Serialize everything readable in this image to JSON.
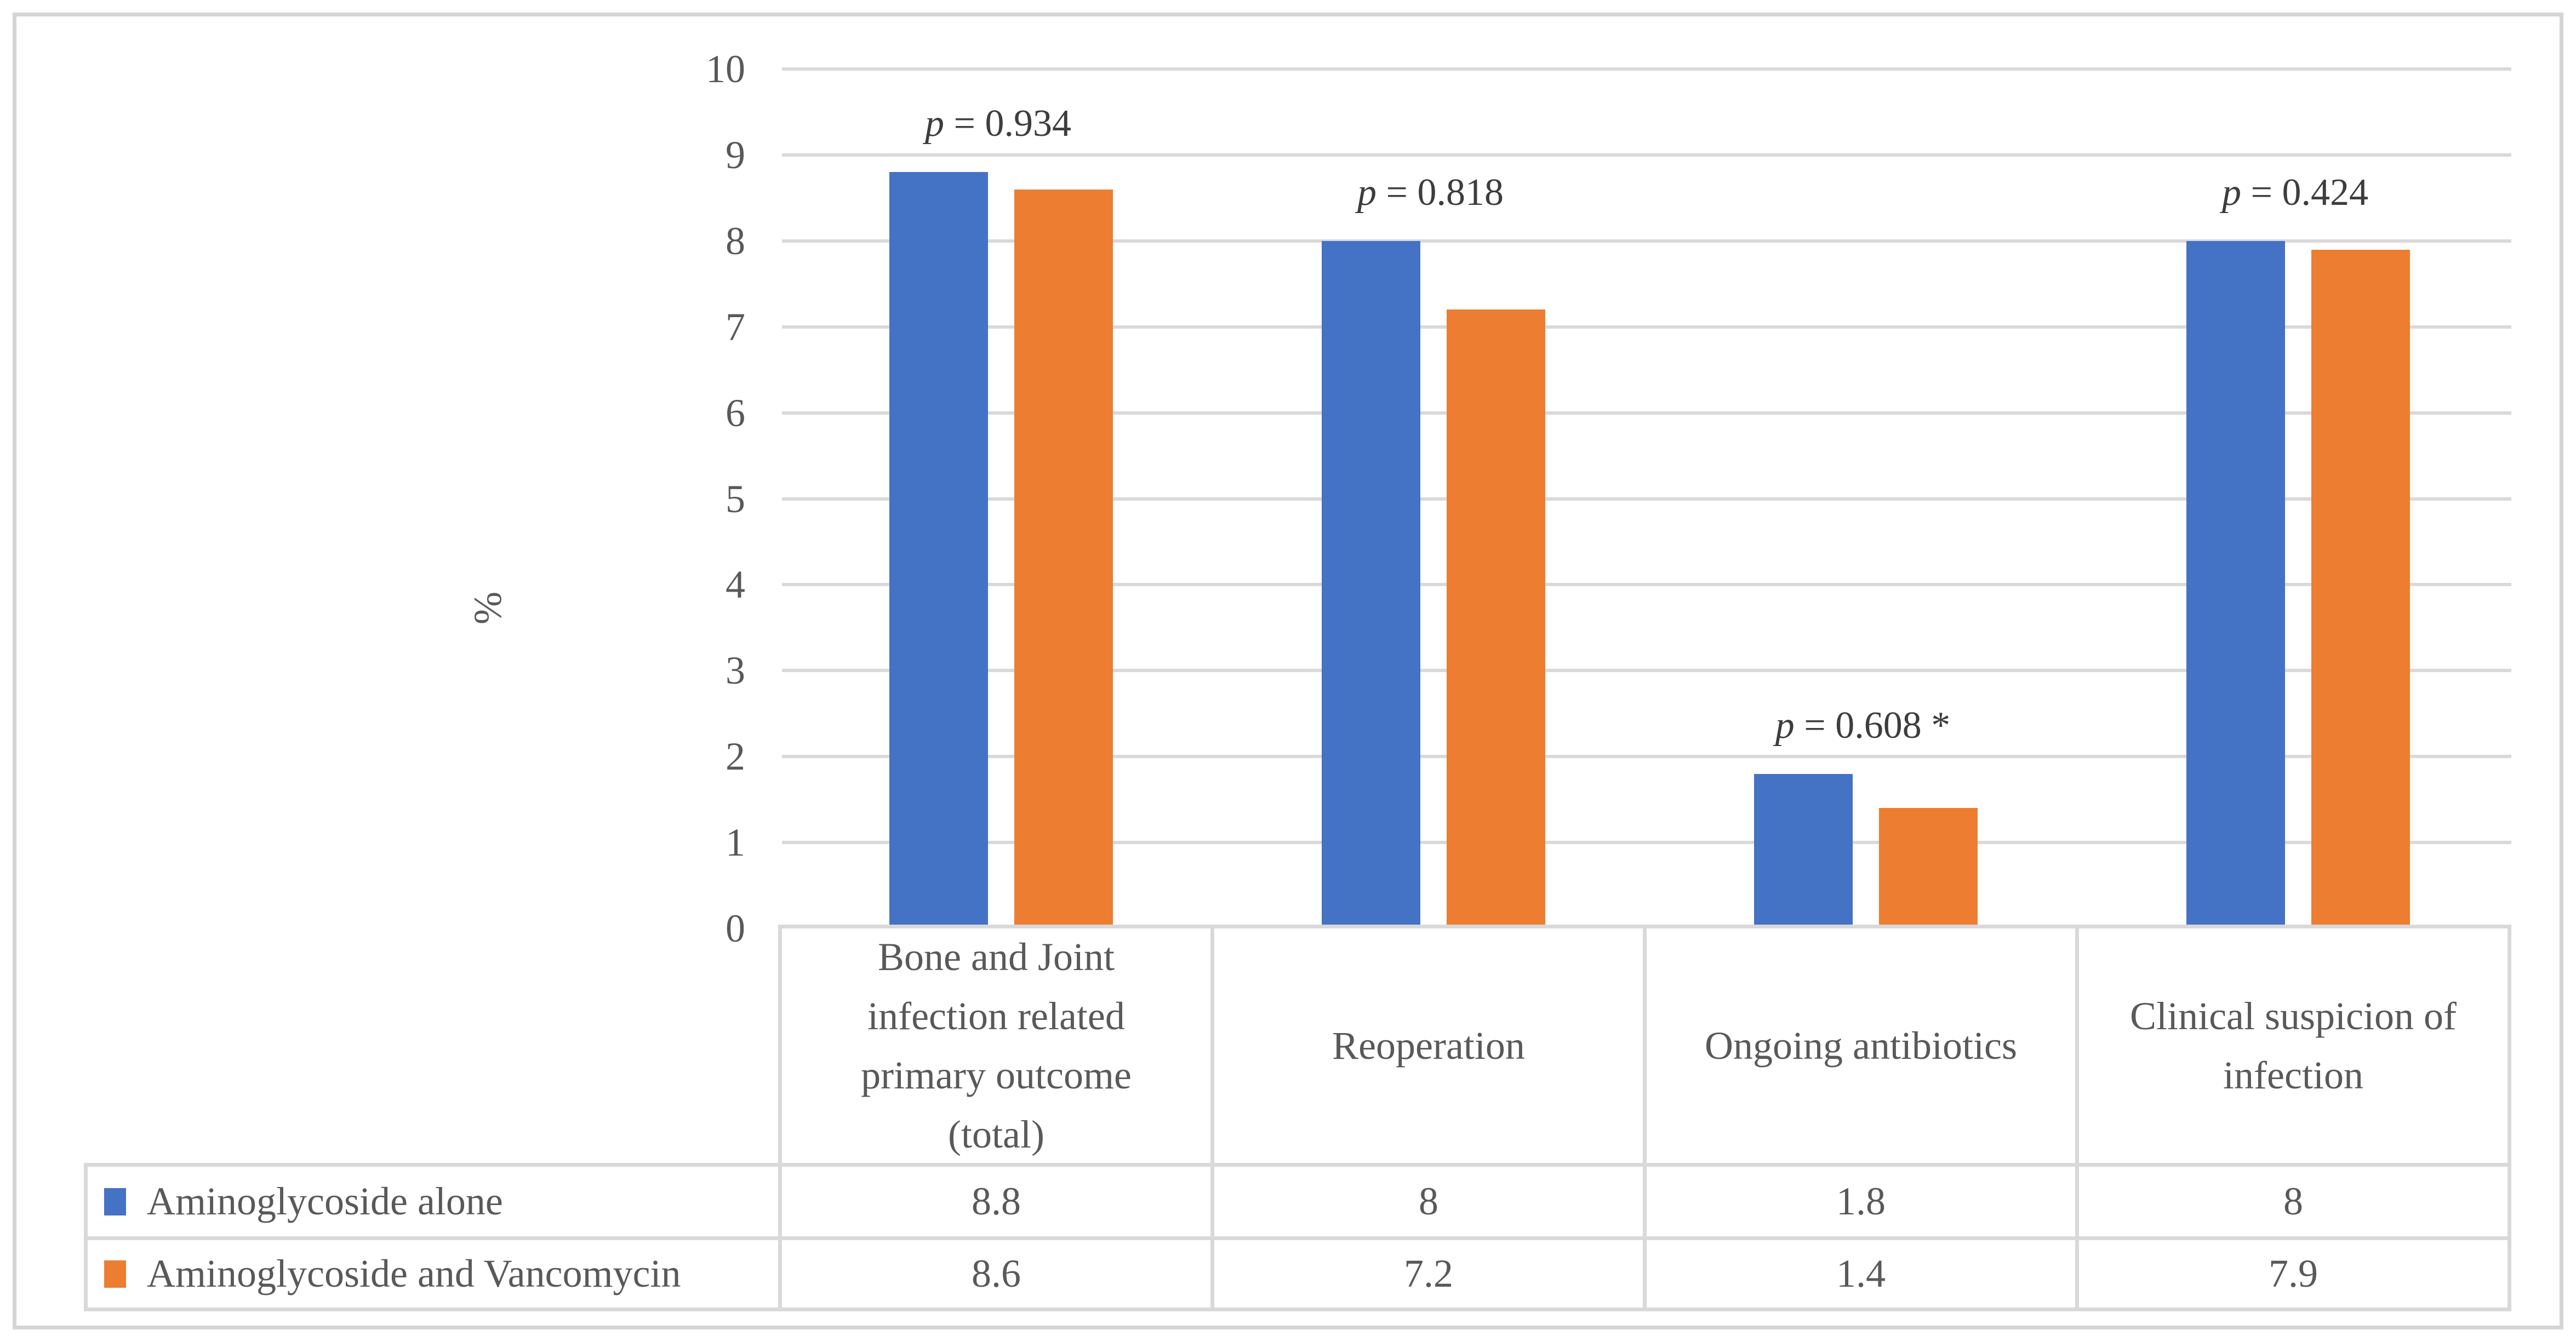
{
  "figure": {
    "y_axis_title": "%"
  },
  "chart_data": {
    "type": "bar",
    "title": "",
    "xlabel": "",
    "ylabel": "%",
    "ylim": [
      0,
      10
    ],
    "ytick_labels": [
      "0",
      "1",
      "2",
      "3",
      "4",
      "5",
      "6",
      "7",
      "8",
      "9",
      "10"
    ],
    "grid": true,
    "legend_position": "bottom-left-table",
    "categories": [
      "Bone and Joint\ninfection related\nprimary outcome\n(total)",
      "Reoperation",
      "Ongoing antibiotics",
      "Clinical suspicion of\ninfection"
    ],
    "series": [
      {
        "name": "Aminoglycoside alone",
        "color": "#4472C4",
        "values": [
          8.8,
          8,
          1.8,
          8
        ],
        "display_values": [
          "8.8",
          "8",
          "1.8",
          "8"
        ]
      },
      {
        "name": "Aminoglycoside and Vancomycin",
        "color": "#ED7D31",
        "values": [
          8.6,
          7.2,
          1.4,
          7.9
        ],
        "display_values": [
          "8.6",
          "7.2",
          "1.4",
          "7.9"
        ]
      }
    ],
    "p_value_labels": [
      "p = 0.934",
      "p = 0.818",
      "p = 0.608 *",
      "p = 0.424"
    ],
    "colors": {
      "gridline": "#D9D9D9",
      "table_border": "#D9D9D9",
      "figure_border": "#D4D4D4",
      "axis_text": "#595959",
      "p_label_text": "#3D3D3D"
    }
  }
}
